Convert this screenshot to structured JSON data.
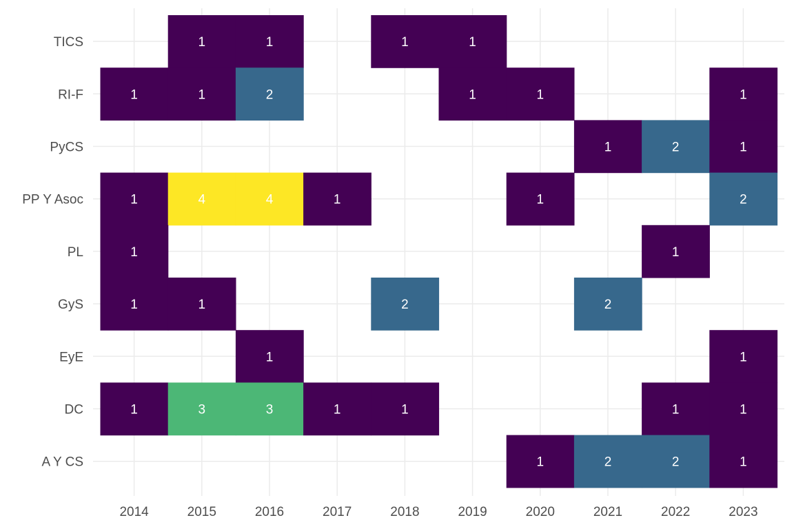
{
  "chart_data": {
    "type": "heatmap",
    "title": "",
    "xlabel": "",
    "ylabel": "",
    "x_categories": [
      "2014",
      "2015",
      "2016",
      "2017",
      "2018",
      "2019",
      "2020",
      "2021",
      "2022",
      "2023"
    ],
    "y_categories": [
      "A Y CS",
      "DC",
      "EyE",
      "GyS",
      "PL",
      "PP Y Asoc",
      "PyCS",
      "RI-F",
      "TICS"
    ],
    "cells": [
      {
        "x": "2015",
        "y": "TICS",
        "value": 1
      },
      {
        "x": "2016",
        "y": "TICS",
        "value": 1
      },
      {
        "x": "2018",
        "y": "TICS",
        "value": 1
      },
      {
        "x": "2019",
        "y": "TICS",
        "value": 1
      },
      {
        "x": "2014",
        "y": "RI-F",
        "value": 1
      },
      {
        "x": "2015",
        "y": "RI-F",
        "value": 1
      },
      {
        "x": "2016",
        "y": "RI-F",
        "value": 2
      },
      {
        "x": "2019",
        "y": "RI-F",
        "value": 1
      },
      {
        "x": "2020",
        "y": "RI-F",
        "value": 1
      },
      {
        "x": "2023",
        "y": "RI-F",
        "value": 1
      },
      {
        "x": "2021",
        "y": "PyCS",
        "value": 1
      },
      {
        "x": "2022",
        "y": "PyCS",
        "value": 2
      },
      {
        "x": "2023",
        "y": "PyCS",
        "value": 1
      },
      {
        "x": "2014",
        "y": "PP Y Asoc",
        "value": 1
      },
      {
        "x": "2015",
        "y": "PP Y Asoc",
        "value": 4
      },
      {
        "x": "2016",
        "y": "PP Y Asoc",
        "value": 4
      },
      {
        "x": "2017",
        "y": "PP Y Asoc",
        "value": 1
      },
      {
        "x": "2020",
        "y": "PP Y Asoc",
        "value": 1
      },
      {
        "x": "2023",
        "y": "PP Y Asoc",
        "value": 2
      },
      {
        "x": "2014",
        "y": "PL",
        "value": 1
      },
      {
        "x": "2022",
        "y": "PL",
        "value": 1
      },
      {
        "x": "2014",
        "y": "GyS",
        "value": 1
      },
      {
        "x": "2015",
        "y": "GyS",
        "value": 1
      },
      {
        "x": "2018",
        "y": "GyS",
        "value": 2
      },
      {
        "x": "2021",
        "y": "GyS",
        "value": 2
      },
      {
        "x": "2016",
        "y": "EyE",
        "value": 1
      },
      {
        "x": "2023",
        "y": "EyE",
        "value": 1
      },
      {
        "x": "2014",
        "y": "DC",
        "value": 1
      },
      {
        "x": "2015",
        "y": "DC",
        "value": 3
      },
      {
        "x": "2016",
        "y": "DC",
        "value": 3
      },
      {
        "x": "2017",
        "y": "DC",
        "value": 1
      },
      {
        "x": "2018",
        "y": "DC",
        "value": 1
      },
      {
        "x": "2022",
        "y": "DC",
        "value": 1
      },
      {
        "x": "2023",
        "y": "DC",
        "value": 1
      },
      {
        "x": "2020",
        "y": "A Y CS",
        "value": 1
      },
      {
        "x": "2021",
        "y": "A Y CS",
        "value": 2
      },
      {
        "x": "2022",
        "y": "A Y CS",
        "value": 2
      },
      {
        "x": "2023",
        "y": "A Y CS",
        "value": 1
      }
    ],
    "color_scale": {
      "1": "#440154",
      "2": "#37688C",
      "3": "#4CB776",
      "4": "#FDE725"
    },
    "label_color": "#ffffff",
    "legend": "none",
    "grid": true
  }
}
